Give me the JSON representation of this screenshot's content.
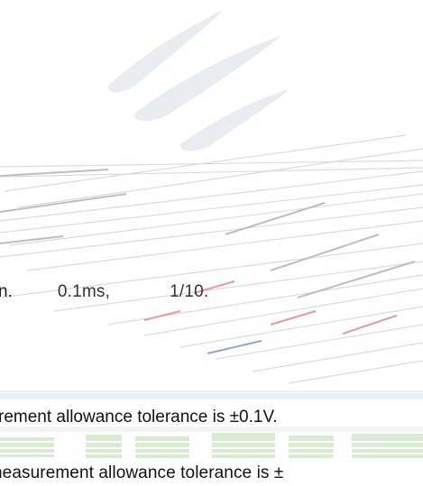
{
  "lines": {
    "fragment": {
      "lead": "n.",
      "time": "0.1ms,",
      "ratio": "1/10."
    },
    "tolerance_1": "rement allowance tolerance is ±0.1V.",
    "tolerance_2": "neasurement allowance tolerance is ±"
  },
  "colors": {
    "watermark_gray": "#e3e7ee",
    "watermark_green": "#cfe8c4",
    "accent_red": "#e79a9a",
    "accent_blue": "#8fa3d4"
  }
}
